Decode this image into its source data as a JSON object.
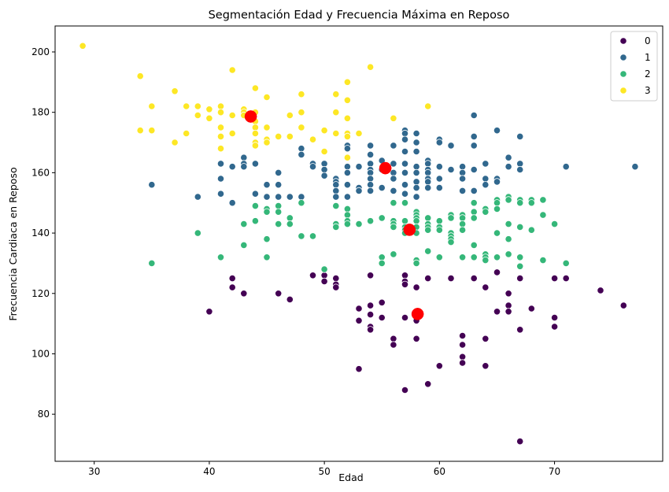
{
  "chart_data": {
    "type": "scatter",
    "title": "Segmentación Edad y Frecuencia Máxima en Reposo",
    "xlabel": "Edad",
    "ylabel": "Frecuencia Cardiaca en Reposo",
    "xlim": [
      26.6,
      79.4
    ],
    "ylim": [
      64.4,
      208.6
    ],
    "xticks": [
      30,
      40,
      50,
      60,
      70
    ],
    "yticks": [
      80,
      100,
      120,
      140,
      160,
      180,
      200
    ],
    "grid": false,
    "legend": {
      "placement": "top-right"
    },
    "series": [
      {
        "name": "0",
        "color": "#440154",
        "points": [
          [
            40,
            114
          ],
          [
            42,
            125
          ],
          [
            42,
            122
          ],
          [
            43,
            120
          ],
          [
            46,
            120
          ],
          [
            47,
            118
          ],
          [
            49,
            126
          ],
          [
            50,
            126
          ],
          [
            50,
            124
          ],
          [
            51,
            125
          ],
          [
            51,
            123
          ],
          [
            51,
            122
          ],
          [
            53,
            115
          ],
          [
            53,
            111
          ],
          [
            53,
            95
          ],
          [
            54,
            126
          ],
          [
            54,
            116
          ],
          [
            54,
            113
          ],
          [
            54,
            109
          ],
          [
            54,
            108
          ],
          [
            55,
            117
          ],
          [
            55,
            112
          ],
          [
            56,
            105
          ],
          [
            56,
            103
          ],
          [
            57,
            126
          ],
          [
            57,
            124
          ],
          [
            57,
            123
          ],
          [
            57,
            112
          ],
          [
            57,
            88
          ],
          [
            58,
            122
          ],
          [
            58,
            112
          ],
          [
            58,
            111
          ],
          [
            58,
            105
          ],
          [
            59,
            125
          ],
          [
            59,
            90
          ],
          [
            60,
            96
          ],
          [
            61,
            125
          ],
          [
            62,
            106
          ],
          [
            62,
            103
          ],
          [
            62,
            99
          ],
          [
            62,
            97
          ],
          [
            63,
            125
          ],
          [
            64,
            122
          ],
          [
            64,
            96
          ],
          [
            64,
            105
          ],
          [
            65,
            127
          ],
          [
            65,
            114
          ],
          [
            66,
            120
          ],
          [
            66,
            116
          ],
          [
            66,
            114
          ],
          [
            67,
            125
          ],
          [
            67,
            108
          ],
          [
            67,
            71
          ],
          [
            68,
            115
          ],
          [
            70,
            125
          ],
          [
            70,
            112
          ],
          [
            70,
            109
          ],
          [
            71,
            125
          ],
          [
            74,
            121
          ],
          [
            76,
            116
          ]
        ]
      },
      {
        "name": "1",
        "color": "#31688e",
        "points": [
          [
            35,
            156
          ],
          [
            39,
            152
          ],
          [
            41,
            163
          ],
          [
            41,
            158
          ],
          [
            41,
            153
          ],
          [
            42,
            162
          ],
          [
            42,
            150
          ],
          [
            43,
            165
          ],
          [
            43,
            163
          ],
          [
            43,
            162
          ],
          [
            44,
            163
          ],
          [
            44,
            153
          ],
          [
            45,
            156
          ],
          [
            45,
            152
          ],
          [
            46,
            160
          ],
          [
            46,
            156
          ],
          [
            46,
            152
          ],
          [
            47,
            152
          ],
          [
            48,
            168
          ],
          [
            48,
            166
          ],
          [
            48,
            152
          ],
          [
            49,
            163
          ],
          [
            49,
            162
          ],
          [
            50,
            163
          ],
          [
            50,
            161
          ],
          [
            50,
            159
          ],
          [
            51,
            158
          ],
          [
            51,
            157
          ],
          [
            51,
            156
          ],
          [
            51,
            154
          ],
          [
            51,
            152
          ],
          [
            52,
            169
          ],
          [
            52,
            168
          ],
          [
            52,
            162
          ],
          [
            52,
            160
          ],
          [
            52,
            156
          ],
          [
            52,
            152
          ],
          [
            53,
            162
          ],
          [
            53,
            155
          ],
          [
            53,
            154
          ],
          [
            54,
            169
          ],
          [
            54,
            166
          ],
          [
            54,
            163
          ],
          [
            54,
            161
          ],
          [
            54,
            160
          ],
          [
            54,
            158
          ],
          [
            54,
            156
          ],
          [
            54,
            154
          ],
          [
            55,
            164
          ],
          [
            55,
            161
          ],
          [
            55,
            155
          ],
          [
            56,
            169
          ],
          [
            56,
            163
          ],
          [
            56,
            160
          ],
          [
            56,
            158
          ],
          [
            56,
            154
          ],
          [
            57,
            174
          ],
          [
            57,
            173
          ],
          [
            57,
            171
          ],
          [
            57,
            167
          ],
          [
            57,
            163
          ],
          [
            57,
            160
          ],
          [
            57,
            156
          ],
          [
            57,
            153
          ],
          [
            58,
            173
          ],
          [
            58,
            170
          ],
          [
            58,
            167
          ],
          [
            58,
            162
          ],
          [
            58,
            160
          ],
          [
            58,
            157
          ],
          [
            58,
            155
          ],
          [
            58,
            152
          ],
          [
            59,
            164
          ],
          [
            59,
            163
          ],
          [
            59,
            161
          ],
          [
            59,
            160
          ],
          [
            59,
            158
          ],
          [
            59,
            157
          ],
          [
            59,
            155
          ],
          [
            60,
            171
          ],
          [
            60,
            170
          ],
          [
            60,
            162
          ],
          [
            60,
            158
          ],
          [
            60,
            155
          ],
          [
            61,
            169
          ],
          [
            61,
            161
          ],
          [
            62,
            162
          ],
          [
            62,
            160
          ],
          [
            62,
            158
          ],
          [
            62,
            154
          ],
          [
            63,
            179
          ],
          [
            63,
            172
          ],
          [
            63,
            169
          ],
          [
            63,
            161
          ],
          [
            63,
            154
          ],
          [
            64,
            163
          ],
          [
            64,
            158
          ],
          [
            64,
            156
          ],
          [
            65,
            174
          ],
          [
            65,
            158
          ],
          [
            65,
            157
          ],
          [
            66,
            165
          ],
          [
            66,
            162
          ],
          [
            67,
            172
          ],
          [
            67,
            163
          ],
          [
            67,
            161
          ],
          [
            71,
            162
          ],
          [
            77,
            162
          ]
        ]
      },
      {
        "name": "2",
        "color": "#35b779",
        "points": [
          [
            35,
            130
          ],
          [
            39,
            140
          ],
          [
            41,
            132
          ],
          [
            43,
            143
          ],
          [
            43,
            136
          ],
          [
            44,
            149
          ],
          [
            44,
            144
          ],
          [
            45,
            148
          ],
          [
            45,
            147
          ],
          [
            45,
            138
          ],
          [
            45,
            132
          ],
          [
            46,
            149
          ],
          [
            46,
            147
          ],
          [
            46,
            143
          ],
          [
            47,
            145
          ],
          [
            47,
            143
          ],
          [
            48,
            150
          ],
          [
            48,
            139
          ],
          [
            49,
            139
          ],
          [
            50,
            128
          ],
          [
            51,
            149
          ],
          [
            51,
            143
          ],
          [
            51,
            142
          ],
          [
            52,
            148
          ],
          [
            52,
            146
          ],
          [
            52,
            144
          ],
          [
            52,
            143
          ],
          [
            53,
            143
          ],
          [
            54,
            144
          ],
          [
            55,
            145
          ],
          [
            55,
            132
          ],
          [
            55,
            130
          ],
          [
            56,
            150
          ],
          [
            56,
            144
          ],
          [
            56,
            143
          ],
          [
            56,
            142
          ],
          [
            56,
            133
          ],
          [
            57,
            150
          ],
          [
            57,
            144
          ],
          [
            57,
            142
          ],
          [
            57,
            141
          ],
          [
            57,
            140
          ],
          [
            58,
            147
          ],
          [
            58,
            146
          ],
          [
            58,
            145
          ],
          [
            58,
            144
          ],
          [
            58,
            142
          ],
          [
            58,
            140
          ],
          [
            58,
            131
          ],
          [
            58,
            130
          ],
          [
            59,
            145
          ],
          [
            59,
            143
          ],
          [
            59,
            142
          ],
          [
            59,
            141
          ],
          [
            59,
            134
          ],
          [
            60,
            144
          ],
          [
            60,
            142
          ],
          [
            60,
            141
          ],
          [
            60,
            132
          ],
          [
            61,
            146
          ],
          [
            61,
            145
          ],
          [
            61,
            140
          ],
          [
            61,
            139
          ],
          [
            61,
            138
          ],
          [
            61,
            137
          ],
          [
            62,
            146
          ],
          [
            62,
            145
          ],
          [
            62,
            143
          ],
          [
            62,
            141
          ],
          [
            62,
            132
          ],
          [
            63,
            150
          ],
          [
            63,
            147
          ],
          [
            63,
            145
          ],
          [
            63,
            136
          ],
          [
            63,
            132
          ],
          [
            64,
            148
          ],
          [
            64,
            147
          ],
          [
            64,
            133
          ],
          [
            64,
            132
          ],
          [
            64,
            131
          ],
          [
            65,
            151
          ],
          [
            65,
            150
          ],
          [
            65,
            148
          ],
          [
            65,
            140
          ],
          [
            65,
            132
          ],
          [
            66,
            152
          ],
          [
            66,
            151
          ],
          [
            66,
            143
          ],
          [
            66,
            138
          ],
          [
            66,
            133
          ],
          [
            67,
            151
          ],
          [
            67,
            150
          ],
          [
            67,
            142
          ],
          [
            67,
            132
          ],
          [
            67,
            129
          ],
          [
            68,
            151
          ],
          [
            68,
            150
          ],
          [
            68,
            141
          ],
          [
            69,
            151
          ],
          [
            69,
            146
          ],
          [
            69,
            131
          ],
          [
            70,
            143
          ],
          [
            71,
            130
          ]
        ]
      },
      {
        "name": "3",
        "color": "#fde725",
        "points": [
          [
            29,
            202
          ],
          [
            34,
            192
          ],
          [
            34,
            174
          ],
          [
            35,
            182
          ],
          [
            35,
            174
          ],
          [
            37,
            187
          ],
          [
            37,
            170
          ],
          [
            38,
            182
          ],
          [
            38,
            173
          ],
          [
            39,
            182
          ],
          [
            39,
            179
          ],
          [
            40,
            181
          ],
          [
            40,
            178
          ],
          [
            41,
            182
          ],
          [
            41,
            180
          ],
          [
            41,
            175
          ],
          [
            41,
            172
          ],
          [
            41,
            168
          ],
          [
            42,
            194
          ],
          [
            42,
            179
          ],
          [
            42,
            173
          ],
          [
            43,
            181
          ],
          [
            43,
            180
          ],
          [
            43,
            179
          ],
          [
            44,
            188
          ],
          [
            44,
            180
          ],
          [
            44,
            177
          ],
          [
            44,
            175
          ],
          [
            44,
            173
          ],
          [
            44,
            170
          ],
          [
            44,
            169
          ],
          [
            45,
            185
          ],
          [
            45,
            175
          ],
          [
            45,
            171
          ],
          [
            45,
            170
          ],
          [
            46,
            172
          ],
          [
            47,
            179
          ],
          [
            47,
            172
          ],
          [
            48,
            186
          ],
          [
            48,
            180
          ],
          [
            48,
            175
          ],
          [
            49,
            171
          ],
          [
            50,
            174
          ],
          [
            50,
            167
          ],
          [
            51,
            186
          ],
          [
            51,
            180
          ],
          [
            51,
            173
          ],
          [
            52,
            190
          ],
          [
            52,
            184
          ],
          [
            52,
            178
          ],
          [
            52,
            173
          ],
          [
            52,
            172
          ],
          [
            52,
            165
          ],
          [
            53,
            173
          ],
          [
            54,
            195
          ],
          [
            56,
            178
          ],
          [
            59,
            182
          ]
        ]
      }
    ],
    "centroids": {
      "color": "#ff0000",
      "points": [
        [
          58.1,
          113.2
        ],
        [
          55.3,
          161.5
        ],
        [
          57.4,
          141.1
        ],
        [
          43.6,
          178.6
        ]
      ]
    }
  }
}
